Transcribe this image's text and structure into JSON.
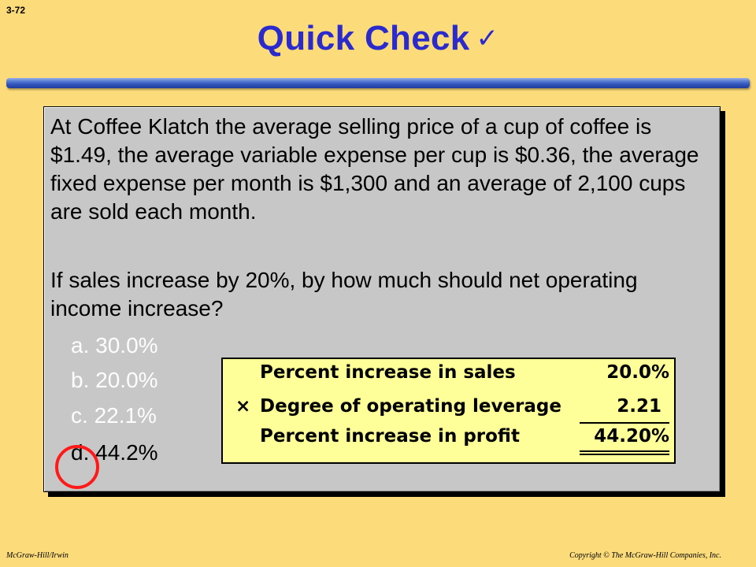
{
  "slide": {
    "number": "3-72",
    "title": "Quick Check",
    "title_check": "✓"
  },
  "question": {
    "paragraph1": "At Coffee Klatch the average selling price of a cup of coffee is $1.49, the average variable expense per cup is $0.36, the average fixed expense per month is $1,300 and an average of 2,100 cups are sold each month.",
    "paragraph2": "If sales increase by 20%, by how much should net operating income increase?"
  },
  "options": [
    {
      "letter": "a.",
      "text": "30.0%"
    },
    {
      "letter": "b.",
      "text": "20.0%"
    },
    {
      "letter": "c.",
      "text": "22.1%"
    },
    {
      "letter": "d.",
      "text": "44.2%"
    }
  ],
  "answer": {
    "letter": "d"
  },
  "calculation": {
    "rows": [
      {
        "operator": "",
        "label": "Percent increase in sales",
        "value": "20.0%"
      },
      {
        "operator": "×",
        "label": "Degree of operating leverage",
        "value": "2.21"
      },
      {
        "operator": "",
        "label": "Percent increase in profit",
        "value": "44.20%"
      }
    ]
  },
  "footer": {
    "left": "McGraw-Hill/Irwin",
    "right": "Copyright © The McGraw-Hill Companies, Inc."
  },
  "colors": {
    "background": "#FCDB7B",
    "title": "#2A2ACD",
    "card": "#C7C7C7",
    "calc_box": "#FFFF99",
    "answer_circle": "#FF1A1A"
  }
}
